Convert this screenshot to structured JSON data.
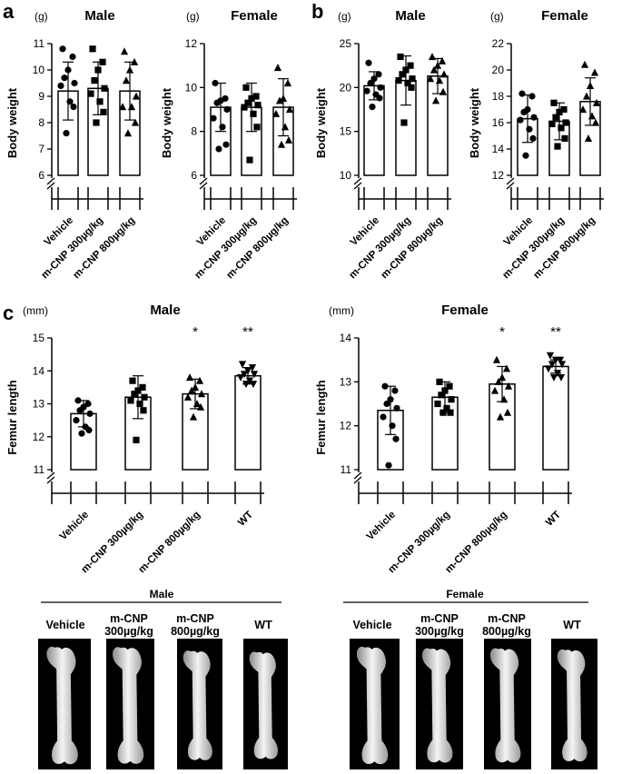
{
  "panel_labels": [
    "a",
    "b",
    "c"
  ],
  "chart_data": [
    {
      "type": "bar",
      "title": "Male",
      "y_unit": "(g)",
      "ylabel": "Body weight",
      "categories": [
        "Vehicle",
        "m-CNP 300µg/kg",
        "m-CNP 800µg/kg"
      ],
      "values": [
        9.2,
        9.3,
        9.2
      ],
      "errors": [
        1.1,
        1.0,
        1.1
      ],
      "points": [
        [
          10.8,
          10.5,
          10.0,
          9.7,
          9.5,
          9.4,
          8.8,
          8.6,
          7.6
        ],
        [
          10.8,
          10.3,
          10.0,
          9.6,
          9.3,
          9.1,
          8.8,
          8.4,
          8.0
        ],
        [
          10.7,
          10.3,
          10.0,
          9.6,
          9.0,
          8.6,
          8.6,
          8.0,
          7.6
        ]
      ],
      "markers": [
        "circle",
        "square",
        "triangle"
      ],
      "ylim": [
        6,
        11
      ],
      "yticks": [
        6,
        7,
        8,
        9,
        10,
        11
      ]
    },
    {
      "type": "bar",
      "title": "Female",
      "y_unit": "(g)",
      "ylabel": "Body weight",
      "categories": [
        "Vehicle",
        "m-CNP 300µg/kg",
        "m-CNP 800µg/kg"
      ],
      "values": [
        9.1,
        9.1,
        9.1
      ],
      "errors": [
        1.1,
        1.1,
        1.3
      ],
      "points": [
        [
          10.2,
          9.5,
          9.4,
          9.3,
          9.0,
          8.6,
          8.2,
          7.4,
          7.2
        ],
        [
          10.0,
          9.6,
          9.5,
          9.3,
          9.2,
          9.1,
          8.8,
          8.2,
          6.7
        ],
        [
          10.9,
          10.2,
          9.5,
          9.4,
          9.0,
          8.8,
          8.2,
          7.6,
          7.4
        ]
      ],
      "markers": [
        "circle",
        "square",
        "triangle"
      ],
      "ylim": [
        6,
        12
      ],
      "yticks": [
        6,
        8,
        10,
        12
      ]
    },
    {
      "type": "bar",
      "title": "Male",
      "y_unit": "(g)",
      "ylabel": "Body weight",
      "categories": [
        "Vehicle",
        "m-CNP 300µg/kg",
        "m-CNP 800µg/kg"
      ],
      "values": [
        20.2,
        20.8,
        21.3
      ],
      "errors": [
        1.6,
        2.8,
        2.0
      ],
      "points": [
        [
          22.8,
          21.5,
          21.0,
          20.5,
          20.0,
          19.6,
          19.2,
          18.8,
          17.8
        ],
        [
          23.5,
          22.5,
          22.0,
          21.5,
          21.0,
          20.8,
          20.5,
          20.0,
          16.0
        ],
        [
          23.5,
          23.0,
          22.5,
          22.0,
          21.5,
          21.0,
          20.8,
          19.5,
          18.5
        ]
      ],
      "markers": [
        "circle",
        "square",
        "triangle"
      ],
      "ylim": [
        10,
        25
      ],
      "yticks": [
        10,
        15,
        20,
        25
      ]
    },
    {
      "type": "bar",
      "title": "Female",
      "y_unit": "(g)",
      "ylabel": "Body weight",
      "categories": [
        "Vehicle",
        "m-CNP 300µg/kg",
        "m-CNP 800µg/kg"
      ],
      "values": [
        16.3,
        16.1,
        17.6
      ],
      "errors": [
        1.8,
        1.4,
        1.8
      ],
      "points": [
        [
          18.2,
          18.0,
          17.0,
          16.8,
          16.4,
          16.2,
          15.5,
          14.8,
          13.5
        ],
        [
          17.5,
          17.0,
          16.8,
          16.4,
          16.0,
          15.9,
          15.6,
          14.8,
          14.2
        ],
        [
          20.4,
          19.8,
          18.8,
          18.0,
          17.5,
          17.0,
          16.5,
          16.0,
          14.8
        ]
      ],
      "markers": [
        "circle",
        "square",
        "triangle"
      ],
      "ylim": [
        12,
        22
      ],
      "yticks": [
        12,
        14,
        16,
        18,
        20,
        22
      ]
    },
    {
      "type": "bar",
      "title": "Male",
      "y_unit": "(mm)",
      "ylabel": "Femur length",
      "categories": [
        "Vehicle",
        "m-CNP 300µg/kg",
        "m-CNP 800µg/kg",
        "WT"
      ],
      "values": [
        12.7,
        13.2,
        13.3,
        13.85
      ],
      "errors": [
        0.4,
        0.65,
        0.45,
        0.25
      ],
      "stars": [
        null,
        null,
        "*",
        "**"
      ],
      "points": [
        [
          13.1,
          13.0,
          12.9,
          12.8,
          12.7,
          12.5,
          12.3,
          12.2,
          12.1
        ],
        [
          13.7,
          13.5,
          13.4,
          13.3,
          13.2,
          13.1,
          13.0,
          12.8,
          11.9
        ],
        [
          13.8,
          13.7,
          13.5,
          13.4,
          13.3,
          13.2,
          13.0,
          12.9,
          12.6
        ],
        [
          14.2,
          14.1,
          14.0,
          13.9,
          13.9,
          13.8,
          13.7,
          13.6,
          13.6
        ]
      ],
      "markers": [
        "circle",
        "square",
        "triangle",
        "triangle-down"
      ],
      "ylim": [
        11,
        15
      ],
      "yticks": [
        11,
        12,
        13,
        14,
        15
      ]
    },
    {
      "type": "bar",
      "title": "Female",
      "y_unit": "(mm)",
      "ylabel": "Femur length",
      "categories": [
        "Vehicle",
        "m-CNP 300µg/kg",
        "m-CNP 800µg/kg",
        "WT"
      ],
      "values": [
        12.35,
        12.65,
        12.95,
        13.35
      ],
      "errors": [
        0.55,
        0.35,
        0.4,
        0.15
      ],
      "stars": [
        null,
        null,
        "*",
        "**"
      ],
      "points": [
        [
          12.9,
          12.8,
          12.6,
          12.5,
          12.4,
          12.2,
          12.0,
          11.7,
          11.1
        ],
        [
          13.0,
          12.9,
          12.8,
          12.7,
          12.6,
          12.5,
          12.4,
          12.3,
          12.3
        ],
        [
          13.5,
          13.3,
          13.1,
          13.0,
          12.9,
          12.8,
          12.6,
          12.3,
          12.2
        ],
        [
          13.6,
          13.5,
          13.5,
          13.4,
          13.4,
          13.3,
          13.2,
          13.1,
          13.1
        ]
      ],
      "markers": [
        "circle",
        "square",
        "triangle",
        "triangle-down"
      ],
      "ylim": [
        11,
        14
      ],
      "yticks": [
        11,
        12,
        13,
        14
      ]
    }
  ],
  "images": [
    {
      "title": "Male",
      "labels": [
        [
          "Vehicle"
        ],
        [
          "m-CNP",
          "300µg/kg"
        ],
        [
          "m-CNP",
          "800µg/kg"
        ],
        [
          "WT"
        ]
      ]
    },
    {
      "title": "Female",
      "labels": [
        [
          "Vehicle"
        ],
        [
          "m-CNP",
          "300µg/kg"
        ],
        [
          "m-CNP",
          "800µg/kg"
        ],
        [
          "WT"
        ]
      ]
    }
  ]
}
